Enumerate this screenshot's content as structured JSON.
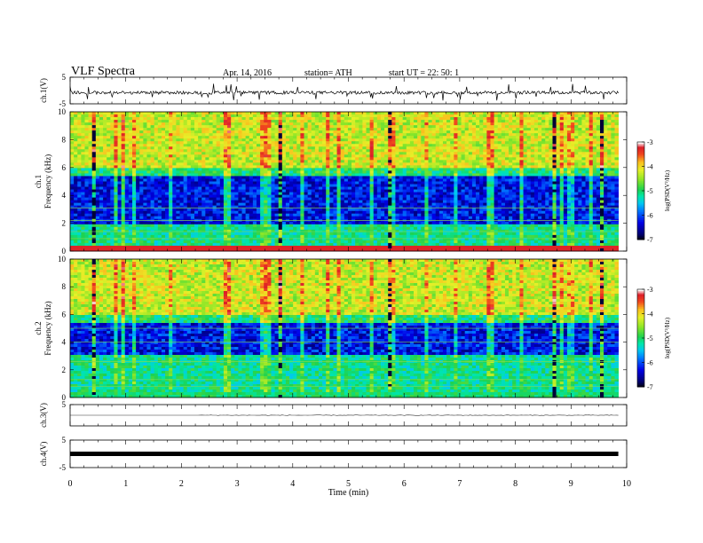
{
  "header": {
    "title": "VLF  Spectra",
    "date": "Apr. 14,  2016",
    "station": "station= ATH",
    "start": "start  UT  =    22: 50: 1"
  },
  "chart_data": [
    {
      "type": "line",
      "panel": "ch1-waveform",
      "ylabel": "ch.1(V)",
      "ylim": [
        -5,
        5
      ],
      "yticks": [
        "5",
        "-5"
      ],
      "xlim": [
        0,
        10
      ],
      "series_color": "#000000",
      "baseline_V": -0.8,
      "description_values": {
        "typical_amplitude_V": 0.8,
        "spike_extremes_V": [
          -3.8,
          2.6
        ]
      }
    },
    {
      "type": "heatmap",
      "panel": "ch1-spectrogram",
      "ylabel": "ch.1\nFrequency (kHz)",
      "ylabel_line1": "ch.1",
      "ylabel_line2": "Frequency  (kHz)",
      "ylim": [
        0,
        10
      ],
      "yticks": [
        "0",
        "2",
        "4",
        "6",
        "8",
        "10"
      ],
      "xlim": [
        0,
        9.85
      ],
      "colorbar": {
        "label": "log(PSD(V²/Hz)",
        "range": [
          -7,
          -3
        ],
        "ticks": [
          "-3",
          "-4",
          "-5",
          "-6",
          "-7"
        ]
      },
      "bands_kHz": {
        "strong_low": [
          0,
          0.3
        ],
        "dark_low_psd": [
          2.0,
          5.3
        ],
        "broadband_high": [
          6.0,
          10.0
        ]
      }
    },
    {
      "type": "heatmap",
      "panel": "ch2-spectrogram",
      "ylabel_line1": "ch.2",
      "ylabel_line2": "Frequency  (kHz)",
      "ylim": [
        0,
        10
      ],
      "yticks": [
        "0",
        "2",
        "4",
        "6",
        "8",
        "10"
      ],
      "xlim": [
        0,
        9.85
      ],
      "colorbar": {
        "label": "log(PSD(V²/Hz)",
        "range": [
          -7,
          -3
        ],
        "ticks": [
          "-3",
          "-4",
          "-5",
          "-6",
          "-7"
        ]
      },
      "bands_kHz": {
        "dark_low_psd": [
          3.0,
          5.3
        ],
        "broadband_high": [
          6.0,
          10.0
        ]
      }
    },
    {
      "type": "line",
      "panel": "ch3-waveform",
      "ylabel": "ch.3(V)",
      "ylim": [
        -5,
        5
      ],
      "yticks": [
        "5"
      ],
      "xlim": [
        0,
        9.85
      ],
      "baseline_V": 0.0
    },
    {
      "type": "line",
      "panel": "ch4-waveform",
      "ylabel": "ch.4(V)",
      "ylim": [
        -5,
        5
      ],
      "yticks": [
        "5",
        "-5"
      ],
      "xlim": [
        0,
        9.85
      ],
      "baseline_V": 0.0,
      "trace_thickness": "thick"
    },
    {
      "type": "axis",
      "panel": "time-axis",
      "xlabel": "Time  (min)",
      "xlim": [
        0,
        10
      ],
      "xticks": [
        "0",
        "1",
        "2",
        "3",
        "4",
        "5",
        "6",
        "7",
        "8",
        "9",
        "10"
      ]
    }
  ]
}
